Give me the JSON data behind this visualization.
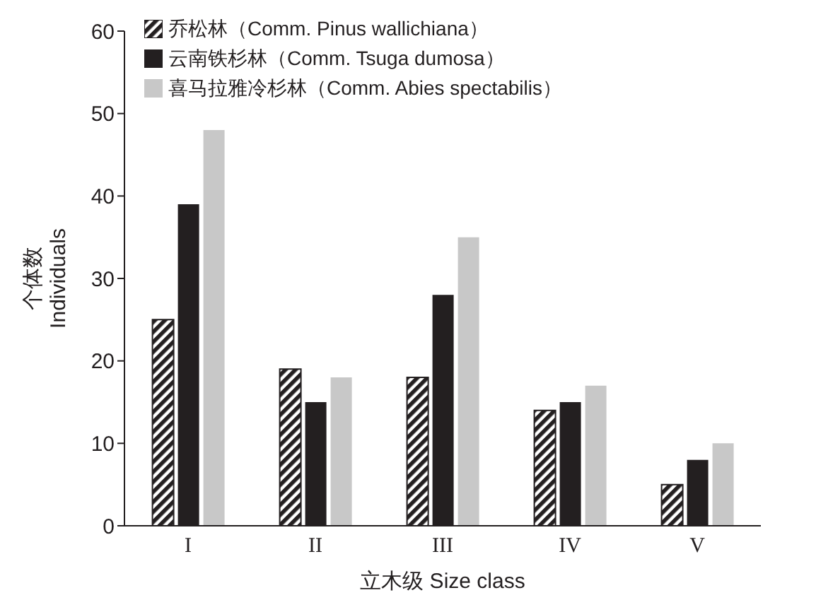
{
  "chart_data": {
    "type": "bar",
    "xlabel": "立木级  Size class",
    "ylabel": "个体数\nIndividuals",
    "categories": [
      "I",
      "II",
      "III",
      "IV",
      "V"
    ],
    "series": [
      {
        "name": "乔松林（Comm. Pinus wallichiana）",
        "color": "#231f20",
        "values": [
          25,
          19,
          18,
          14,
          5
        ]
      },
      {
        "name": "云南铁杉林（Comm. Tsuga dumosa）",
        "color": "#231f20",
        "values": [
          39,
          15,
          28,
          15,
          8
        ]
      },
      {
        "name": "喜马拉雅冷杉林（Comm. Abies spectabilis）",
        "color": "#c8c8c8",
        "values": [
          48,
          18,
          35,
          17,
          10
        ]
      }
    ],
    "ylim": [
      0,
      60
    ],
    "yticks": [
      0,
      10,
      20,
      30,
      40,
      50,
      60
    ],
    "grid": false,
    "legend": "top left"
  }
}
